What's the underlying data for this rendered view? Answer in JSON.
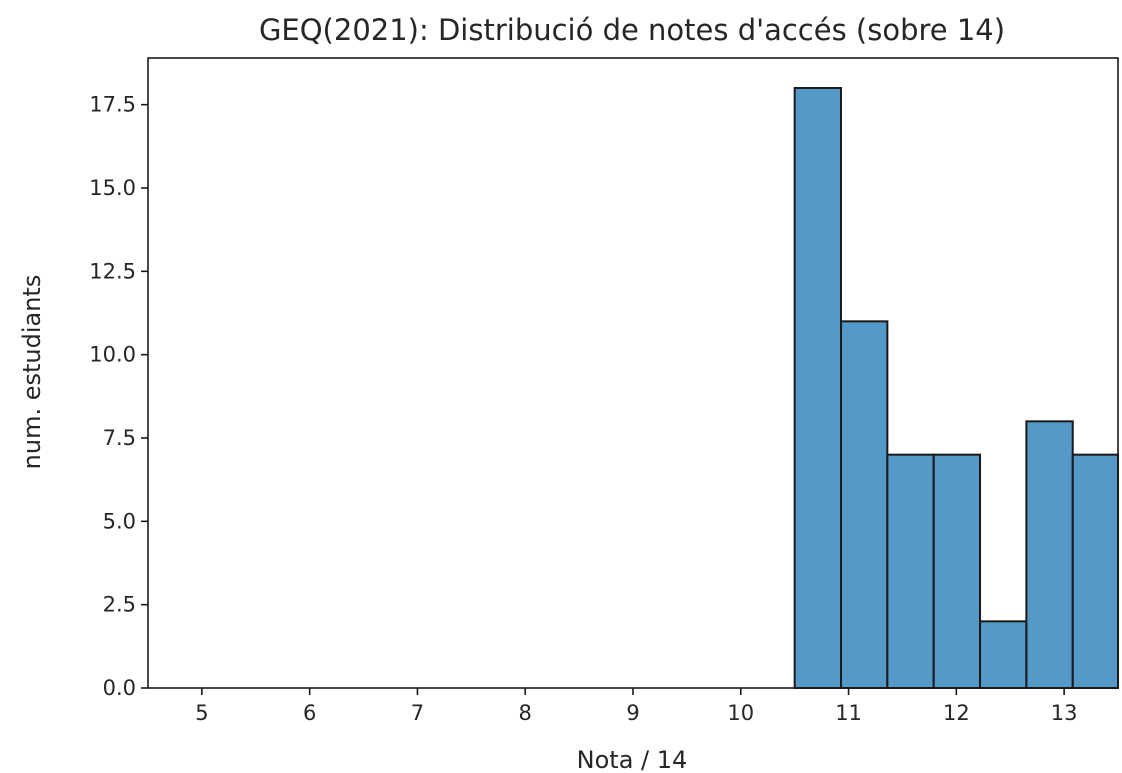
{
  "chart_data": {
    "type": "bar",
    "title": "GEQ(2021): Distribució de notes d'accés (sobre 14)",
    "xlabel": "Nota / 14",
    "ylabel": "num. estudiants",
    "xlim": [
      4.5,
      13.5
    ],
    "ylim": [
      0,
      18.9
    ],
    "grid": false,
    "bar_color": "#5499c7",
    "bins": [
      {
        "x0": 10.5,
        "x1": 10.93,
        "value": 18
      },
      {
        "x0": 10.93,
        "x1": 11.36,
        "value": 11
      },
      {
        "x0": 11.36,
        "x1": 11.79,
        "value": 7
      },
      {
        "x0": 11.79,
        "x1": 12.22,
        "value": 7
      },
      {
        "x0": 12.22,
        "x1": 12.65,
        "value": 2
      },
      {
        "x0": 12.65,
        "x1": 13.08,
        "value": 8
      },
      {
        "x0": 13.08,
        "x1": 13.5,
        "value": 7
      }
    ],
    "x_ticks": [
      {
        "value": 5,
        "label": "5"
      },
      {
        "value": 6,
        "label": "6"
      },
      {
        "value": 7,
        "label": "7"
      },
      {
        "value": 8,
        "label": "8"
      },
      {
        "value": 9,
        "label": "9"
      },
      {
        "value": 10,
        "label": "10"
      },
      {
        "value": 11,
        "label": "11"
      },
      {
        "value": 12,
        "label": "12"
      },
      {
        "value": 13,
        "label": "13"
      }
    ],
    "y_ticks": [
      {
        "value": 0,
        "label": "0.0"
      },
      {
        "value": 2.5,
        "label": "2.5"
      },
      {
        "value": 5,
        "label": "5.0"
      },
      {
        "value": 7.5,
        "label": "7.5"
      },
      {
        "value": 10,
        "label": "10.0"
      },
      {
        "value": 12.5,
        "label": "12.5"
      },
      {
        "value": 15,
        "label": "15.0"
      },
      {
        "value": 17.5,
        "label": "17.5"
      }
    ]
  }
}
